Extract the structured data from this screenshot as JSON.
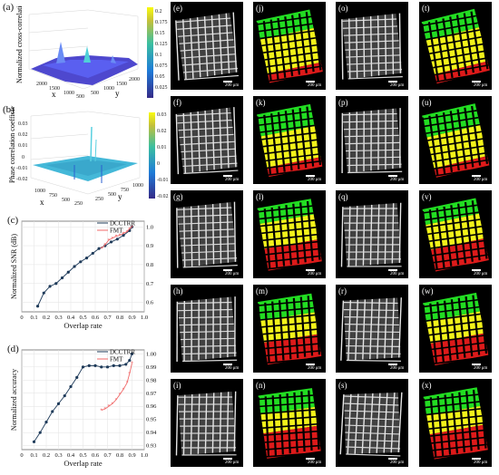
{
  "panels": {
    "a": {
      "label": "(a)",
      "zlabel": "Normalized cross-correlation coefficient",
      "x_label": "x",
      "y_label": "y",
      "x_ticks": [
        "2000",
        "1500",
        "1000",
        "500"
      ],
      "y_ticks": [
        "500",
        "1000",
        "1500",
        "2000"
      ],
      "colorbar_ticks": [
        "0.2",
        "0.175",
        "0.15",
        "0.125",
        "0.1",
        "0.075",
        "0.05",
        "0.025"
      ]
    },
    "b": {
      "label": "(b)",
      "zlabel": "Phase correlation coefficient",
      "z_ticks": [
        "0.03",
        "0.02",
        "0.01",
        "0",
        "-0.01",
        "-0.02"
      ],
      "x_label": "x",
      "y_label": "y",
      "x_ticks": [
        "1000",
        "750",
        "500",
        "250"
      ],
      "y_ticks": [
        "250",
        "500",
        "750",
        "1000"
      ],
      "colorbar_ticks": [
        "0.03",
        "0.02",
        "0.01",
        "0",
        "-0.01",
        "-0.02"
      ]
    },
    "tile_labels": [
      "(e)",
      "(j)",
      "(o)",
      "(t)",
      "(f)",
      "(k)",
      "(p)",
      "(u)",
      "(g)",
      "(l)",
      "(q)",
      "(v)",
      "(h)",
      "(m)",
      "(r)",
      "(w)",
      "(i)",
      "(n)",
      "(s)",
      "(x)"
    ],
    "scalebar_text": "200 μm"
  },
  "colors": {
    "dcctrr": "#1f3b5a",
    "fmt": "#f06a6a",
    "green": "#22dd22",
    "yellow": "#f2f21a",
    "red": "#dd1a1a"
  },
  "chart_data": [
    {
      "type": "line",
      "label": "(c)",
      "xlabel": "Overlap rate",
      "ylabel": "Normalized SNR (dB)",
      "xlim": [
        0,
        1
      ],
      "ylim": [
        0.55,
        1.03
      ],
      "xticks": [
        "0",
        "0.1",
        "0.2",
        "0.3",
        "0.4",
        "0.5",
        "0.6",
        "0.7",
        "0.8",
        "0.9",
        "1.0"
      ],
      "yticks": [
        "0.6",
        "0.7",
        "0.8",
        "0.9",
        "1.0"
      ],
      "legend_position": "top-right",
      "series": [
        {
          "name": "DCCTRR",
          "x": [
            0.13,
            0.18,
            0.23,
            0.28,
            0.33,
            0.38,
            0.43,
            0.48,
            0.53,
            0.58,
            0.63,
            0.68,
            0.73,
            0.78,
            0.83,
            0.88,
            0.9
          ],
          "y": [
            0.58,
            0.65,
            0.685,
            0.7,
            0.73,
            0.76,
            0.79,
            0.815,
            0.835,
            0.86,
            0.885,
            0.9,
            0.92,
            0.935,
            0.955,
            0.98,
            1.0
          ]
        },
        {
          "name": "FMT",
          "x": [
            0.65,
            0.68,
            0.71,
            0.74,
            0.77,
            0.8,
            0.83,
            0.86,
            0.88,
            0.9
          ],
          "y": [
            0.885,
            0.905,
            0.93,
            0.94,
            0.95,
            0.955,
            0.965,
            0.975,
            0.99,
            1.0
          ]
        }
      ]
    },
    {
      "type": "line",
      "label": "(d)",
      "xlabel": "Overlap rate",
      "ylabel": "Normalized accuracy",
      "xlim": [
        0,
        1
      ],
      "ylim": [
        0.927,
        1.003
      ],
      "xticks": [
        "0",
        "0.1",
        "0.2",
        "0.3",
        "0.4",
        "0.5",
        "0.6",
        "0.7",
        "0.8",
        "0.9",
        "1.0"
      ],
      "yticks": [
        "0.93",
        "0.94",
        "0.95",
        "0.96",
        "0.97",
        "0.98",
        "0.99",
        "1.00"
      ],
      "legend_position": "top-right",
      "series": [
        {
          "name": "DCCTRR",
          "x": [
            0.1,
            0.15,
            0.2,
            0.25,
            0.3,
            0.35,
            0.4,
            0.45,
            0.5,
            0.55,
            0.6,
            0.65,
            0.7,
            0.75,
            0.8,
            0.85,
            0.88,
            0.9
          ],
          "y": [
            0.933,
            0.94,
            0.948,
            0.956,
            0.962,
            0.968,
            0.975,
            0.982,
            0.99,
            0.991,
            0.991,
            0.99,
            0.99,
            0.991,
            0.991,
            0.992,
            0.995,
            1.0
          ]
        },
        {
          "name": "FMT",
          "x": [
            0.65,
            0.68,
            0.71,
            0.74,
            0.77,
            0.8,
            0.83,
            0.86,
            0.88,
            0.9
          ],
          "y": [
            0.957,
            0.958,
            0.96,
            0.962,
            0.965,
            0.969,
            0.973,
            0.978,
            0.985,
            0.993
          ]
        }
      ]
    }
  ]
}
